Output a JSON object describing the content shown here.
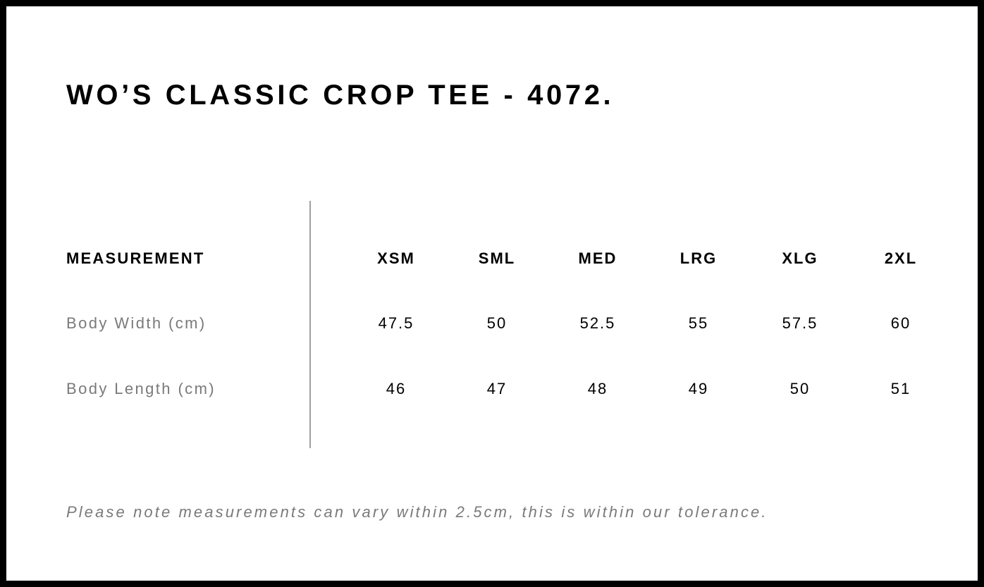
{
  "title": "WO’S CLASSIC CROP TEE - 4072.",
  "table": {
    "header_label": "MEASUREMENT",
    "sizes": [
      "XSM",
      "SML",
      "MED",
      "LRG",
      "XLG",
      "2XL"
    ],
    "rows": [
      {
        "label": "Body Width (cm)",
        "values": [
          "47.5",
          "50",
          "52.5",
          "55",
          "57.5",
          "60"
        ]
      },
      {
        "label": "Body Length (cm)",
        "values": [
          "46",
          "47",
          "48",
          "49",
          "50",
          "51"
        ]
      }
    ]
  },
  "note": "Please note measurements can vary within 2.5cm, this is within our tolerance.",
  "colors": {
    "border": "#000000",
    "label_gray": "#7a7a7a",
    "divider": "#a0a0a0"
  }
}
